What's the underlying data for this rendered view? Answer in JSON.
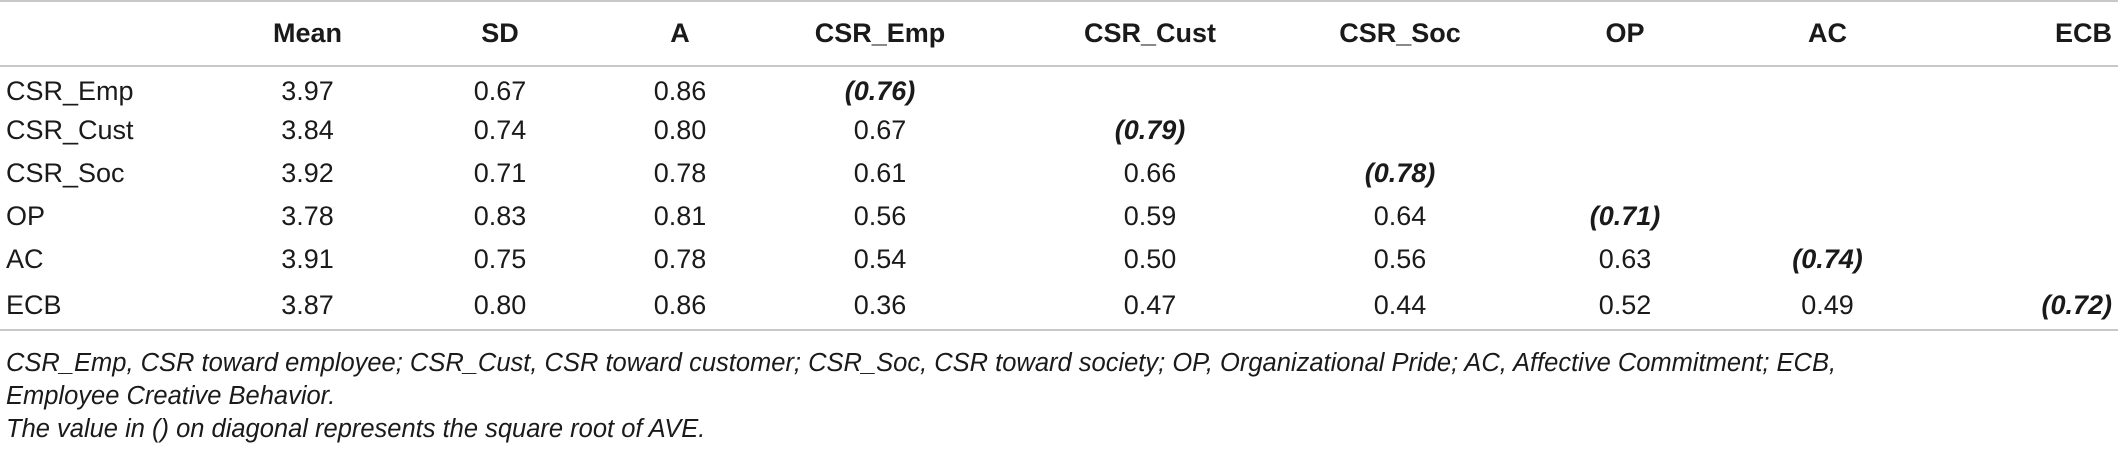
{
  "table": {
    "headers": [
      "",
      "Mean",
      "SD",
      "A",
      "CSR_Emp",
      "CSR_Cust",
      "CSR_Soc",
      "OP",
      "AC",
      "ECB"
    ],
    "rows": [
      {
        "label": "CSR_Emp",
        "cells": [
          "3.97",
          "0.67",
          "0.86",
          "(0.76)",
          "",
          "",
          "",
          "",
          ""
        ]
      },
      {
        "label": "CSR_Cust",
        "cells": [
          "3.84",
          "0.74",
          "0.80",
          "0.67",
          "(0.79)",
          "",
          "",
          "",
          ""
        ]
      },
      {
        "label": "CSR_Soc",
        "cells": [
          "3.92",
          "0.71",
          "0.78",
          "0.61",
          "0.66",
          "(0.78)",
          "",
          "",
          ""
        ]
      },
      {
        "label": "OP",
        "cells": [
          "3.78",
          "0.83",
          "0.81",
          "0.56",
          "0.59",
          "0.64",
          "(0.71)",
          "",
          ""
        ]
      },
      {
        "label": "AC",
        "cells": [
          "3.91",
          "0.75",
          "0.78",
          "0.54",
          "0.50",
          "0.56",
          "0.63",
          "(0.74)",
          ""
        ]
      },
      {
        "label": "ECB",
        "cells": [
          "3.87",
          "0.80",
          "0.86",
          "0.36",
          "0.47",
          "0.44",
          "0.52",
          "0.49",
          "(0.72)"
        ]
      }
    ]
  },
  "notes": {
    "line1": "CSR_Emp, CSR toward employee; CSR_Cust, CSR toward customer; CSR_Soc, CSR toward society; OP, Organizational Pride; AC, Affective Commitment; ECB,",
    "line2": "Employee Creative Behavior.",
    "line3": "The value in () on diagonal represents the square root of AVE."
  }
}
